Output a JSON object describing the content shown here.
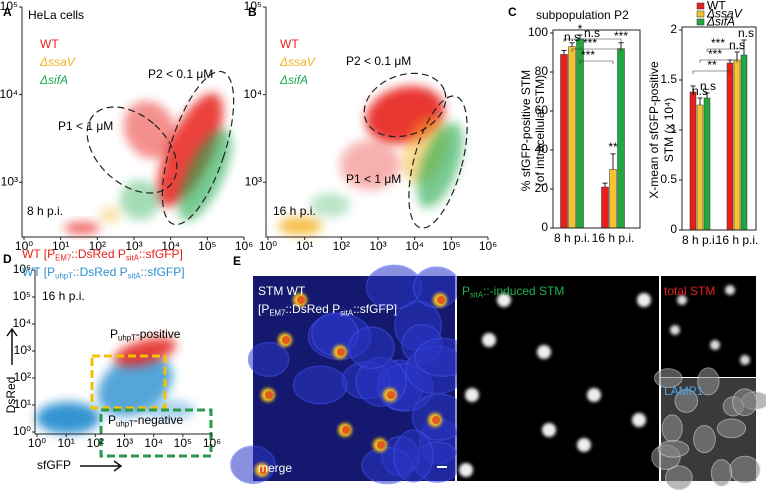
{
  "panels": {
    "A": {
      "letter": "A",
      "heading": "HeLa cells",
      "legend": [
        {
          "text": "WT",
          "color": "#e8201a"
        },
        {
          "text": "ΔssaV",
          "color": "#f2b01e"
        },
        {
          "text": "ΔsifA",
          "color": "#1aa84a"
        }
      ],
      "gates": [
        "P2 < 0.1 μM",
        "P1 < 1 μM"
      ],
      "time": "8 h p.i.",
      "log_scale": true,
      "xlim": [
        1,
        1000000
      ],
      "ylim": [
        250,
        100000
      ],
      "xticks": [
        {
          "value": 1,
          "label": "10⁰"
        },
        {
          "value": 10,
          "label": "10¹"
        },
        {
          "value": 100,
          "label": "10²"
        },
        {
          "value": 1000,
          "label": "10³"
        },
        {
          "value": 10000,
          "label": "10⁴"
        },
        {
          "value": 100000,
          "label": "10⁵"
        },
        {
          "value": 1000000,
          "label": "10⁶"
        }
      ],
      "yticks": [
        {
          "value": 1000,
          "label": "10³"
        },
        {
          "value": 10000,
          "label": "10⁴"
        },
        {
          "value": 100000,
          "label": "10⁵"
        }
      ]
    },
    "B": {
      "letter": "B",
      "legend": [
        {
          "text": "WT",
          "color": "#e8201a"
        },
        {
          "text": "ΔssaV",
          "color": "#f2b01e"
        },
        {
          "text": "ΔsifA",
          "color": "#1aa84a"
        }
      ],
      "gates": [
        "P2 < 0.1 μM",
        "P1 < 1 μM"
      ],
      "time": "16 h p.i.",
      "log_scale": true,
      "xlim": [
        1,
        1000000
      ],
      "ylim": [
        250,
        100000
      ],
      "xticks": [
        {
          "value": 1,
          "label": "10⁰"
        },
        {
          "value": 10,
          "label": "10¹"
        },
        {
          "value": 100,
          "label": "10²"
        },
        {
          "value": 1000,
          "label": "10³"
        },
        {
          "value": 10000,
          "label": "10⁴"
        },
        {
          "value": 100000,
          "label": "10⁵"
        },
        {
          "value": 1000000,
          "label": "10⁶"
        }
      ],
      "yticks": [
        {
          "value": 1000,
          "label": "10³"
        },
        {
          "value": 10000,
          "label": "10⁴"
        },
        {
          "value": 100000,
          "label": "10⁵"
        }
      ]
    },
    "C": {
      "letter": "C",
      "title": "subpopulation P2"
    },
    "D": {
      "letter": "D",
      "legend": [
        {
          "text": [
            "WT [P",
            "EM7",
            "::DsRed P",
            "sitA",
            "::sfGFP]"
          ],
          "color": "#e8201a"
        },
        {
          "text": [
            "WT [P",
            "uhpT",
            "::DsRed P",
            "sitA",
            "::sfGFP]"
          ],
          "color": "#2b8fd0"
        }
      ],
      "gates": [
        [
          "P",
          "uhpT",
          "-positive"
        ],
        [
          "P",
          "uhpT",
          "-negative"
        ]
      ],
      "time": "16 h p.i.",
      "xlabel": "sfGFP",
      "ylabel": "DsRed",
      "log_scale": true,
      "xlim": [
        1,
        1000000
      ],
      "ylim": [
        1,
        1000000
      ],
      "xticks": [
        {
          "value": 1,
          "label": "10⁰"
        },
        {
          "value": 10,
          "label": "10¹"
        },
        {
          "value": 100,
          "label": "10²"
        },
        {
          "value": 1000,
          "label": "10³"
        },
        {
          "value": 10000,
          "label": "10⁴"
        },
        {
          "value": 100000,
          "label": "10⁵"
        },
        {
          "value": 1000000,
          "label": "10⁶"
        }
      ],
      "yticks": [
        {
          "value": 1,
          "label": "10⁰"
        },
        {
          "value": 10,
          "label": "10¹"
        },
        {
          "value": 100,
          "label": "10²"
        },
        {
          "value": 1000,
          "label": "10³"
        },
        {
          "value": 10000,
          "label": "10⁴"
        },
        {
          "value": 100000,
          "label": "10⁵"
        },
        {
          "value": 1000000,
          "label": "10⁶"
        }
      ]
    },
    "E": {
      "letter": "E",
      "merge_title": "STM WT",
      "merge_construct": [
        "[P",
        "EM7",
        "::DsRed P",
        "sitA",
        "::sfGFP]"
      ],
      "merge_label": "merge",
      "gfp_label": [
        "P",
        "sitA",
        "::-induced STM"
      ],
      "total_label": "total STM",
      "lamp_label": "LAMP1"
    }
  },
  "chart_data": [
    {
      "type": "bar",
      "ylabel": [
        "% sfGFP-positive STM",
        "(of intracellular STM)"
      ],
      "categories": [
        "8 h p.i.",
        "16 h p.i."
      ],
      "series": [
        {
          "color": "#e8201a",
          "values": [
            89,
            21
          ],
          "errors": [
            2,
            2
          ]
        },
        {
          "color": "#f4c430",
          "values": [
            93,
            30
          ],
          "errors": [
            2,
            8
          ]
        },
        {
          "color": "#22a63e",
          "values": [
            97,
            92
          ],
          "errors": [
            2,
            3
          ]
        }
      ],
      "ylim": [
        0,
        100
      ],
      "yticks": [
        0,
        20,
        40,
        60,
        80,
        100
      ],
      "annotations": [
        "n.s",
        "*",
        "n.s",
        "***",
        "***",
        "**",
        "***"
      ]
    },
    {
      "type": "bar",
      "ylabel": [
        "X-mean of sfGFP-positive",
        "STM (x 10⁴)"
      ],
      "categories": [
        "8 h p.i.",
        "16 h p.i."
      ],
      "series": [
        {
          "name": "WT",
          "color": "#e8201a",
          "values": [
            1.38,
            1.67
          ],
          "errors": [
            0.06,
            0.03
          ]
        },
        {
          "name": "ΔssaV",
          "color": "#f4c430",
          "values": [
            1.25,
            1.7
          ],
          "errors": [
            0.07,
            0.08
          ]
        },
        {
          "name": "ΔsifA",
          "color": "#22a63e",
          "values": [
            1.32,
            1.75
          ],
          "errors": [
            0.05,
            0.15
          ]
        }
      ],
      "ylim": [
        0,
        2
      ],
      "yticks": [
        0,
        0.5,
        1,
        1.5,
        2
      ],
      "legend": "top",
      "annotations": [
        "n.s",
        "n.s",
        "**",
        "***",
        "***",
        "n.s",
        "n.s"
      ]
    }
  ]
}
